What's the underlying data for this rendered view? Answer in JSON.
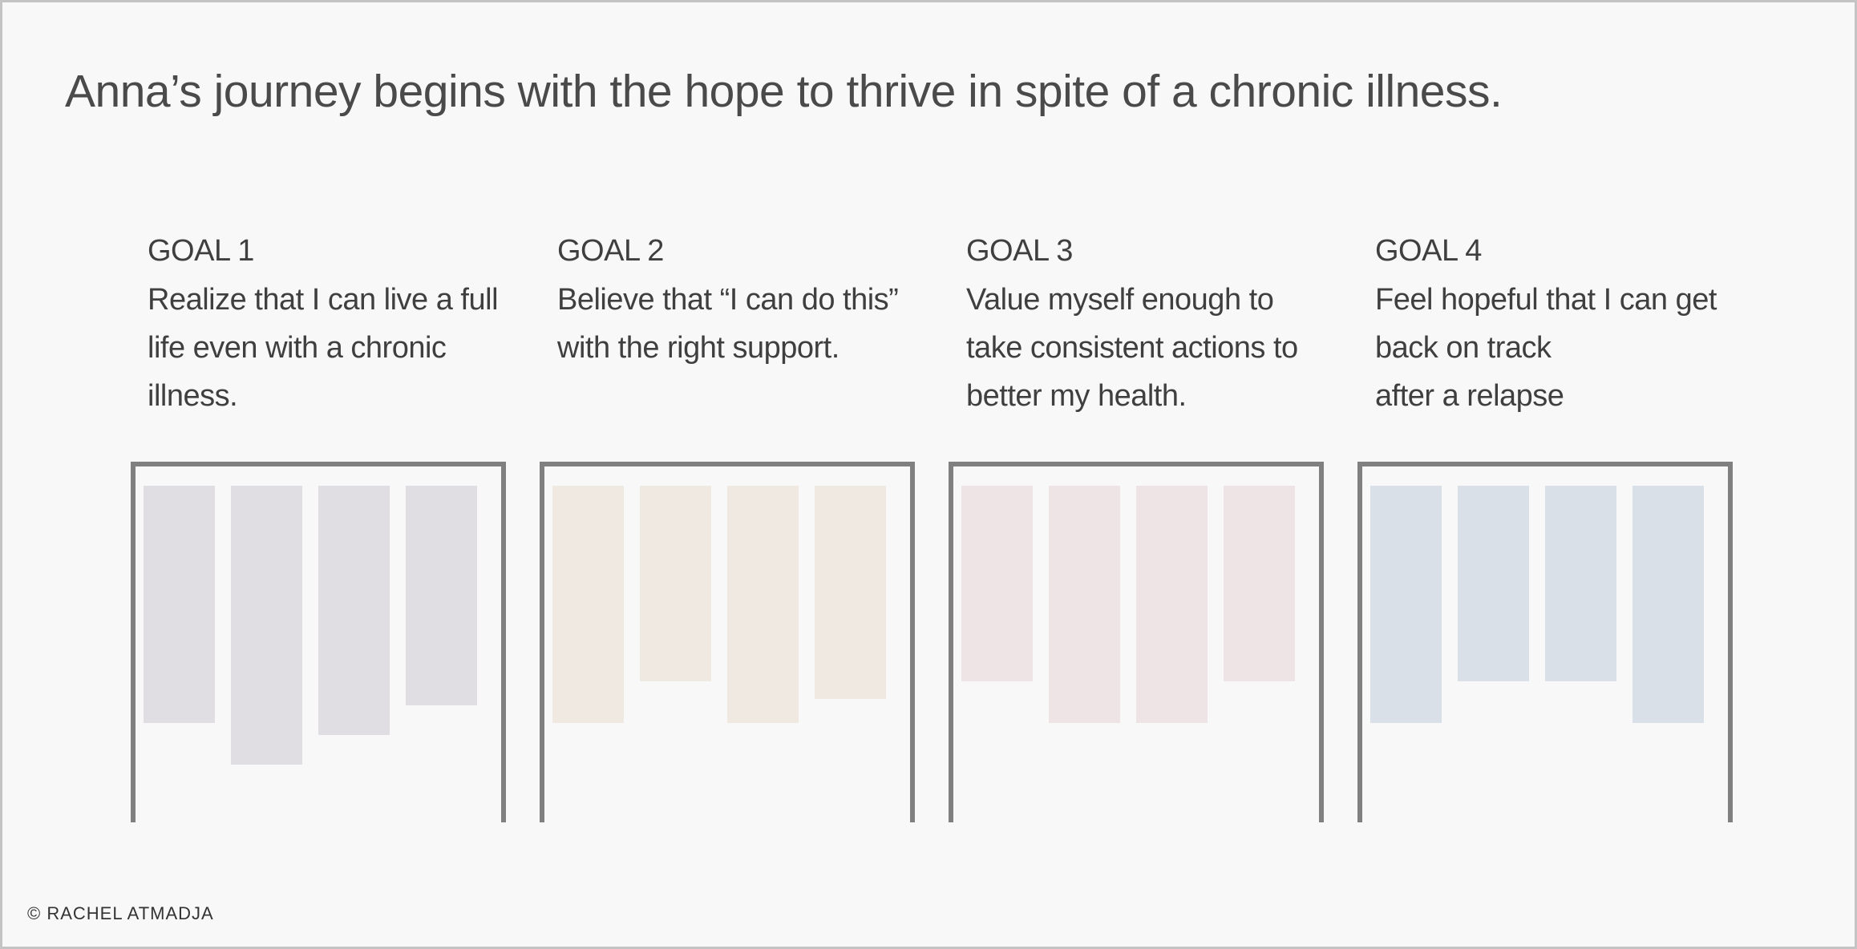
{
  "headline": "Anna’s journey begins with the hope to thrive in spite of a chronic illness.",
  "goals": [
    {
      "label": "GOAL 1",
      "text": [
        "Realize that I can live a full",
        "life even with a chronic",
        "illness."
      ],
      "color": "#e0dee3",
      "bar_levels": [
        0.8,
        0.94,
        0.84,
        0.74
      ]
    },
    {
      "label": "GOAL 2",
      "text": [
        "Believe that “I can do this”",
        "with the right support."
      ],
      "color": "#f0e9e1",
      "bar_levels": [
        0.8,
        0.66,
        0.8,
        0.72
      ]
    },
    {
      "label": "GOAL 3",
      "text": [
        "Value myself enough to",
        "take consistent actions to",
        "better my health."
      ],
      "color": "#eee3e5",
      "bar_levels": [
        0.66,
        0.8,
        0.8,
        0.66
      ]
    },
    {
      "label": "GOAL 4",
      "text": [
        "Feel hopeful that I can get",
        "back on track",
        "after a relapse"
      ],
      "color": "#d9e0e8",
      "bar_levels": [
        0.8,
        0.66,
        0.66,
        0.8
      ]
    }
  ],
  "footer": {
    "copyright": "© RACHEL ATMADJA"
  }
}
